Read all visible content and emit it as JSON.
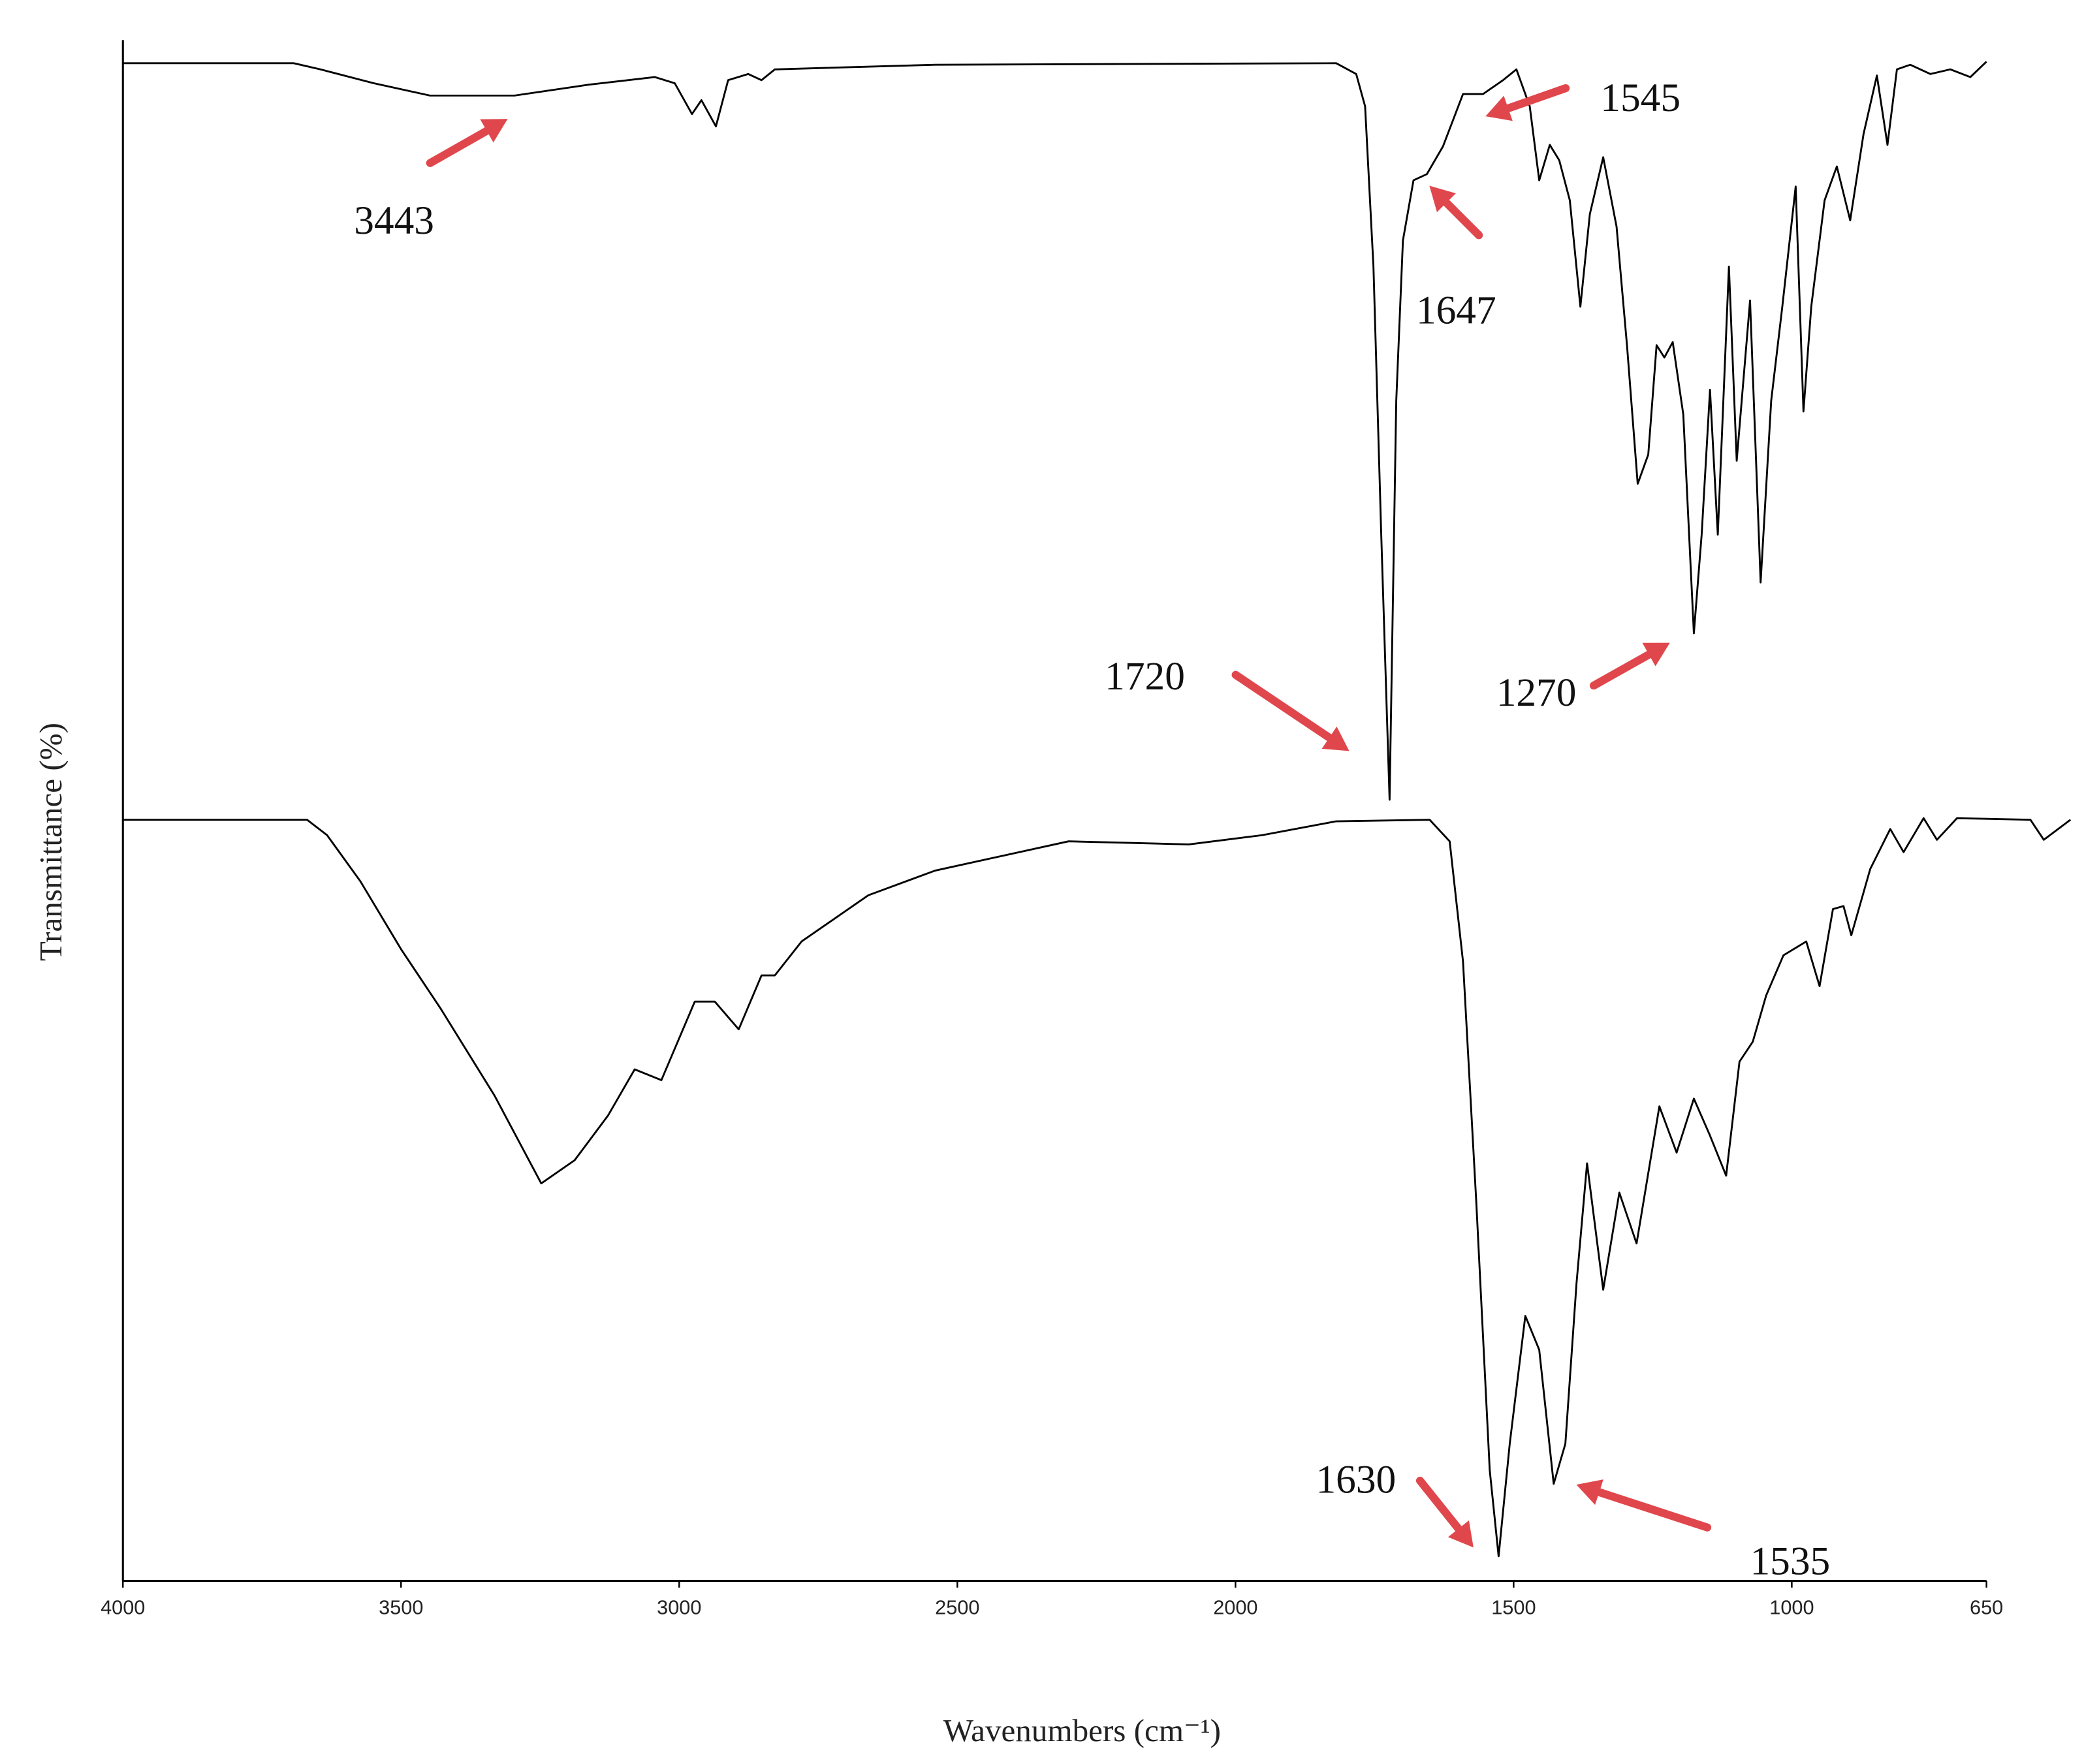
{
  "chart_data": {
    "type": "line",
    "x_label": "Wavenumbers (cm⁻¹)",
    "y_label": "Transmittance (%)",
    "xlim": [
      4000,
      650
    ],
    "xticks": [
      4000,
      3500,
      3000,
      2500,
      2000,
      1500,
      1000,
      650
    ],
    "ylim": [
      0,
      100
    ],
    "annotations": [
      "3443",
      "1545",
      "1647",
      "1720",
      "1270",
      "1630",
      "1535"
    ],
    "annotation_color": "#e0474c",
    "series": [
      {
        "color": "#000000",
        "x": [
          4000,
          3693,
          3645,
          3549,
          3448,
          3296,
          3164,
          3044,
          3008,
          2977,
          2960,
          2934,
          2912,
          2876,
          2852,
          2828,
          2540,
          1819,
          1783,
          1767,
          1752,
          1738,
          1723,
          1711,
          1699,
          1680,
          1656,
          1627,
          1591,
          1555,
          1519,
          1495,
          1471,
          1454,
          1435,
          1418,
          1399,
          1380,
          1363,
          1339,
          1315,
          1296,
          1277,
          1258,
          1243,
          1229,
          1214,
          1195,
          1176,
          1162,
          1147,
          1133,
          1113,
          1099,
          1075,
          1056,
          1037,
          1017,
          993,
          979,
          965,
          941,
          919,
          895,
          871,
          847,
          828,
          811,
          787,
          751,
          715,
          679,
          650
        ],
        "values": [
          98.5,
          98.5,
          98.1,
          97.2,
          96.4,
          96.4,
          97.1,
          97.6,
          97.2,
          95.2,
          96.1,
          94.4,
          97.4,
          97.8,
          97.4,
          98.1,
          98.4,
          98.5,
          97.8,
          95.7,
          85.3,
          67.9,
          50.7,
          76.6,
          87.0,
          90.9,
          91.3,
          93.1,
          96.5,
          96.5,
          97.4,
          98.1,
          95.7,
          90.9,
          93.2,
          92.2,
          89.6,
          82.7,
          88.7,
          92.4,
          87.9,
          80.1,
          71.2,
          73.1,
          80.2,
          79.4,
          80.4,
          75.7,
          61.5,
          67.9,
          77.3,
          67.9,
          85.3,
          72.7,
          83.1,
          64.8,
          76.6,
          82.7,
          90.5,
          75.9,
          82.7,
          89.6,
          91.8,
          88.3,
          93.9,
          97.7,
          93.2,
          98.1,
          98.4,
          97.8,
          98.1,
          97.6,
          98.6
        ]
      },
      {
        "color": "#000000",
        "x": [
          4000,
          3669,
          3633,
          3573,
          3500,
          3428,
          3332,
          3248,
          3188,
          3128,
          3080,
          3032,
          2972,
          2936,
          2893,
          2852,
          2828,
          2780,
          2660,
          2540,
          2300,
          2084,
          1952,
          1819,
          1651,
          1615,
          1591,
          1567,
          1543,
          1527,
          1507,
          1479,
          1454,
          1428,
          1407,
          1387,
          1368,
          1339,
          1310,
          1279,
          1238,
          1207,
          1176,
          1147,
          1118,
          1094,
          1070,
          1046,
          1015,
          974,
          950,
          926,
          907,
          893,
          859,
          823,
          799,
          763,
          739,
          703,
          571,
          547,
          499
        ],
        "values": [
          49.4,
          49.4,
          48.4,
          45.4,
          41.0,
          37.1,
          31.5,
          25.8,
          27.3,
          30.2,
          33.2,
          32.5,
          37.6,
          37.6,
          35.8,
          39.3,
          39.3,
          41.5,
          44.5,
          46.1,
          48.0,
          47.8,
          48.4,
          49.3,
          49.4,
          48.0,
          40.2,
          24.5,
          7.2,
          1.6,
          8.9,
          17.2,
          15.0,
          6.3,
          8.9,
          19.3,
          27.1,
          18.9,
          25.2,
          21.9,
          30.8,
          27.8,
          31.3,
          28.9,
          26.3,
          33.7,
          35.0,
          38.0,
          40.6,
          41.5,
          38.6,
          43.6,
          43.8,
          41.9,
          46.2,
          48.8,
          47.3,
          49.5,
          48.1,
          49.5,
          49.4,
          48.1,
          49.4
        ]
      }
    ]
  }
}
